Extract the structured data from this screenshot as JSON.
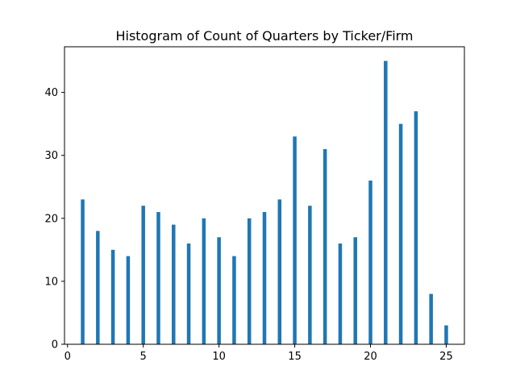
{
  "chart_data": {
    "type": "bar",
    "title": "Histogram of Count of Quarters by Ticker/Firm",
    "xlabel": "",
    "ylabel": "",
    "x": [
      1,
      2,
      3,
      4,
      5,
      6,
      7,
      8,
      9,
      10,
      11,
      12,
      13,
      14,
      15,
      16,
      17,
      18,
      19,
      20,
      21,
      22,
      23,
      24,
      25
    ],
    "values": [
      23,
      18,
      15,
      14,
      22,
      21,
      19,
      16,
      20,
      17,
      14,
      20,
      21,
      23,
      33,
      22,
      31,
      16,
      17,
      26,
      45,
      35,
      37,
      8,
      3
    ],
    "xlim": [
      -0.2,
      26.2
    ],
    "ylim": [
      0,
      47.25
    ],
    "xticks": [
      0,
      5,
      10,
      15,
      20,
      25
    ],
    "yticks": [
      0,
      10,
      20,
      30,
      40
    ],
    "grid": false,
    "legend": "none",
    "bar_color": "#1f77b4"
  }
}
